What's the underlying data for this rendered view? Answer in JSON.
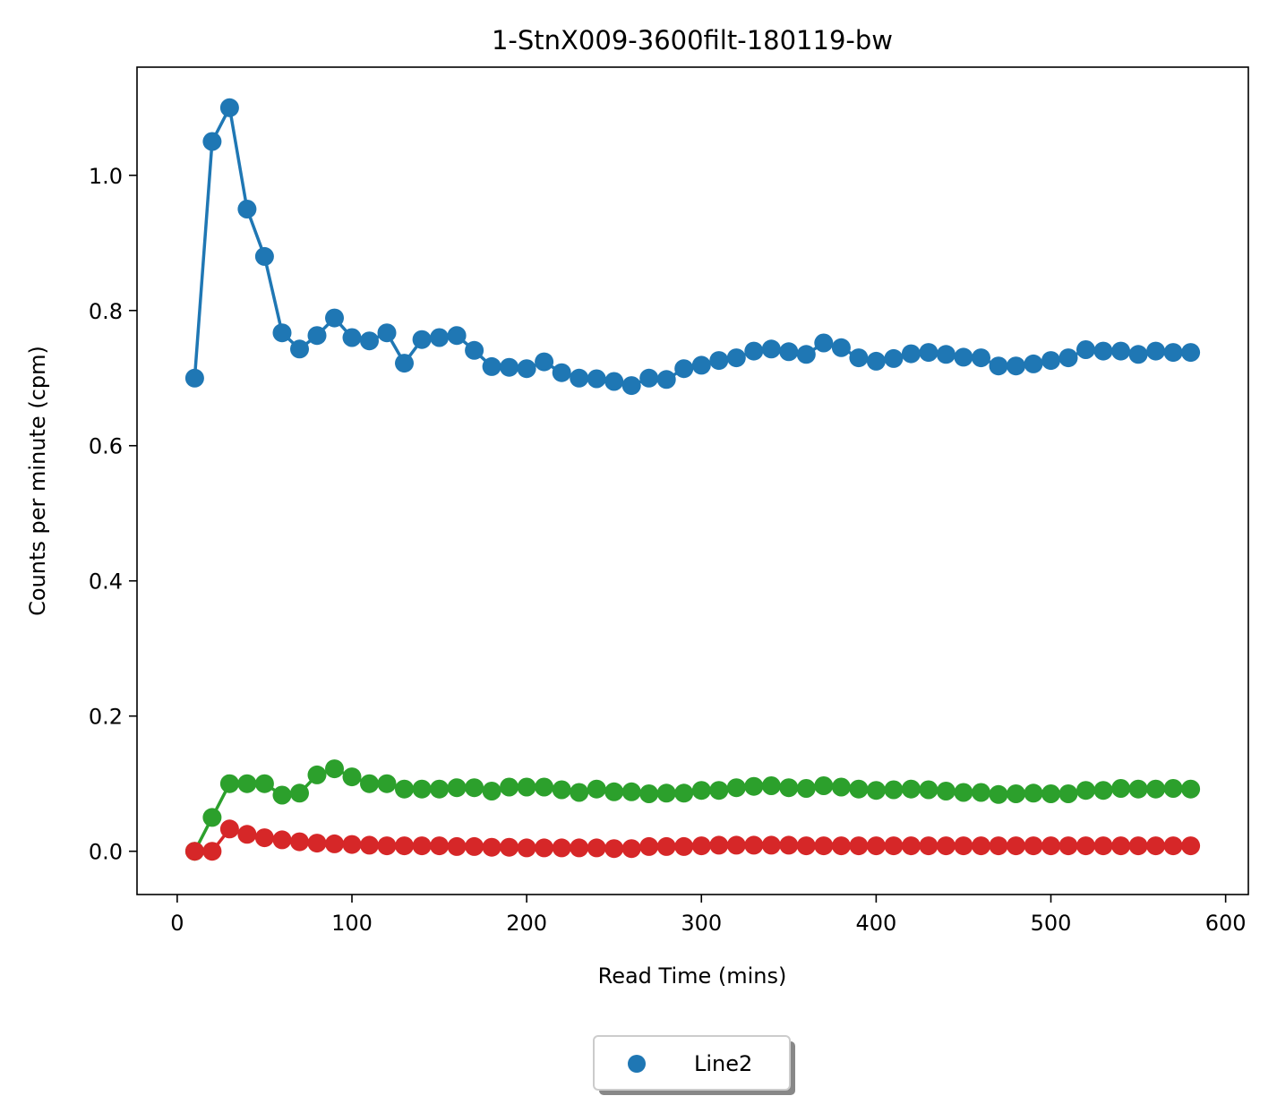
{
  "chart_data": {
    "type": "line",
    "title": "1-StnX009-3600filt-180119-bw",
    "xlabel": "Read Time (mins)",
    "ylabel": "Counts per minute (cpm)",
    "xlim": [
      -23,
      613
    ],
    "ylim": [
      -0.064,
      1.16
    ],
    "xticks": [
      0,
      100,
      200,
      300,
      400,
      500,
      600
    ],
    "xtick_labels": [
      "0",
      "100",
      "200",
      "300",
      "400",
      "500",
      "600"
    ],
    "yticks": [
      0.0,
      0.2,
      0.4,
      0.6,
      0.8,
      1.0
    ],
    "ytick_labels": [
      "0.0",
      "0.2",
      "0.4",
      "0.6",
      "0.8",
      "1.0"
    ],
    "grid": false,
    "legend": {
      "placement": "bottom-center",
      "entries": [
        {
          "label": "Line2",
          "color": "#1f77b4"
        }
      ]
    },
    "x": [
      10,
      20,
      30,
      40,
      50,
      60,
      70,
      80,
      90,
      100,
      110,
      120,
      130,
      140,
      150,
      160,
      170,
      180,
      190,
      200,
      210,
      220,
      230,
      240,
      250,
      260,
      270,
      280,
      290,
      300,
      310,
      320,
      330,
      340,
      350,
      360,
      370,
      380,
      390,
      400,
      410,
      420,
      430,
      440,
      450,
      460,
      470,
      480,
      490,
      500,
      510,
      520,
      530,
      540,
      550,
      560,
      570,
      580
    ],
    "series": [
      {
        "color": "#1f77b4",
        "values": [
          0.7,
          1.05,
          1.1,
          0.95,
          0.88,
          0.767,
          0.743,
          0.763,
          0.789,
          0.76,
          0.755,
          0.767,
          0.722,
          0.757,
          0.76,
          0.763,
          0.741,
          0.717,
          0.716,
          0.714,
          0.724,
          0.708,
          0.7,
          0.699,
          0.695,
          0.689,
          0.7,
          0.698,
          0.714,
          0.719,
          0.726,
          0.73,
          0.74,
          0.743,
          0.739,
          0.735,
          0.752,
          0.745,
          0.73,
          0.725,
          0.729,
          0.736,
          0.738,
          0.735,
          0.731,
          0.73,
          0.718,
          0.718,
          0.721,
          0.726,
          0.73,
          0.742,
          0.74,
          0.74,
          0.735,
          0.74,
          0.738,
          0.738
        ]
      },
      {
        "color": "#2ca02c",
        "values": [
          0.0,
          0.05,
          0.1,
          0.1,
          0.1,
          0.083,
          0.086,
          0.113,
          0.122,
          0.11,
          0.1,
          0.1,
          0.092,
          0.092,
          0.092,
          0.094,
          0.094,
          0.089,
          0.095,
          0.095,
          0.095,
          0.091,
          0.087,
          0.092,
          0.088,
          0.088,
          0.085,
          0.086,
          0.086,
          0.09,
          0.09,
          0.094,
          0.096,
          0.097,
          0.094,
          0.093,
          0.097,
          0.095,
          0.092,
          0.09,
          0.091,
          0.092,
          0.091,
          0.089,
          0.087,
          0.087,
          0.084,
          0.085,
          0.086,
          0.085,
          0.085,
          0.09,
          0.09,
          0.093,
          0.092,
          0.092,
          0.093,
          0.092
        ]
      },
      {
        "color": "#d62728",
        "values": [
          0.0,
          0.0,
          0.033,
          0.025,
          0.02,
          0.017,
          0.014,
          0.012,
          0.011,
          0.01,
          0.009,
          0.008,
          0.008,
          0.008,
          0.008,
          0.007,
          0.007,
          0.006,
          0.006,
          0.005,
          0.005,
          0.005,
          0.005,
          0.005,
          0.004,
          0.004,
          0.007,
          0.007,
          0.007,
          0.008,
          0.009,
          0.009,
          0.009,
          0.009,
          0.009,
          0.008,
          0.008,
          0.008,
          0.008,
          0.008,
          0.008,
          0.008,
          0.008,
          0.008,
          0.008,
          0.008,
          0.008,
          0.008,
          0.008,
          0.008,
          0.008,
          0.008,
          0.008,
          0.008,
          0.008,
          0.008,
          0.008,
          0.008
        ]
      }
    ]
  }
}
